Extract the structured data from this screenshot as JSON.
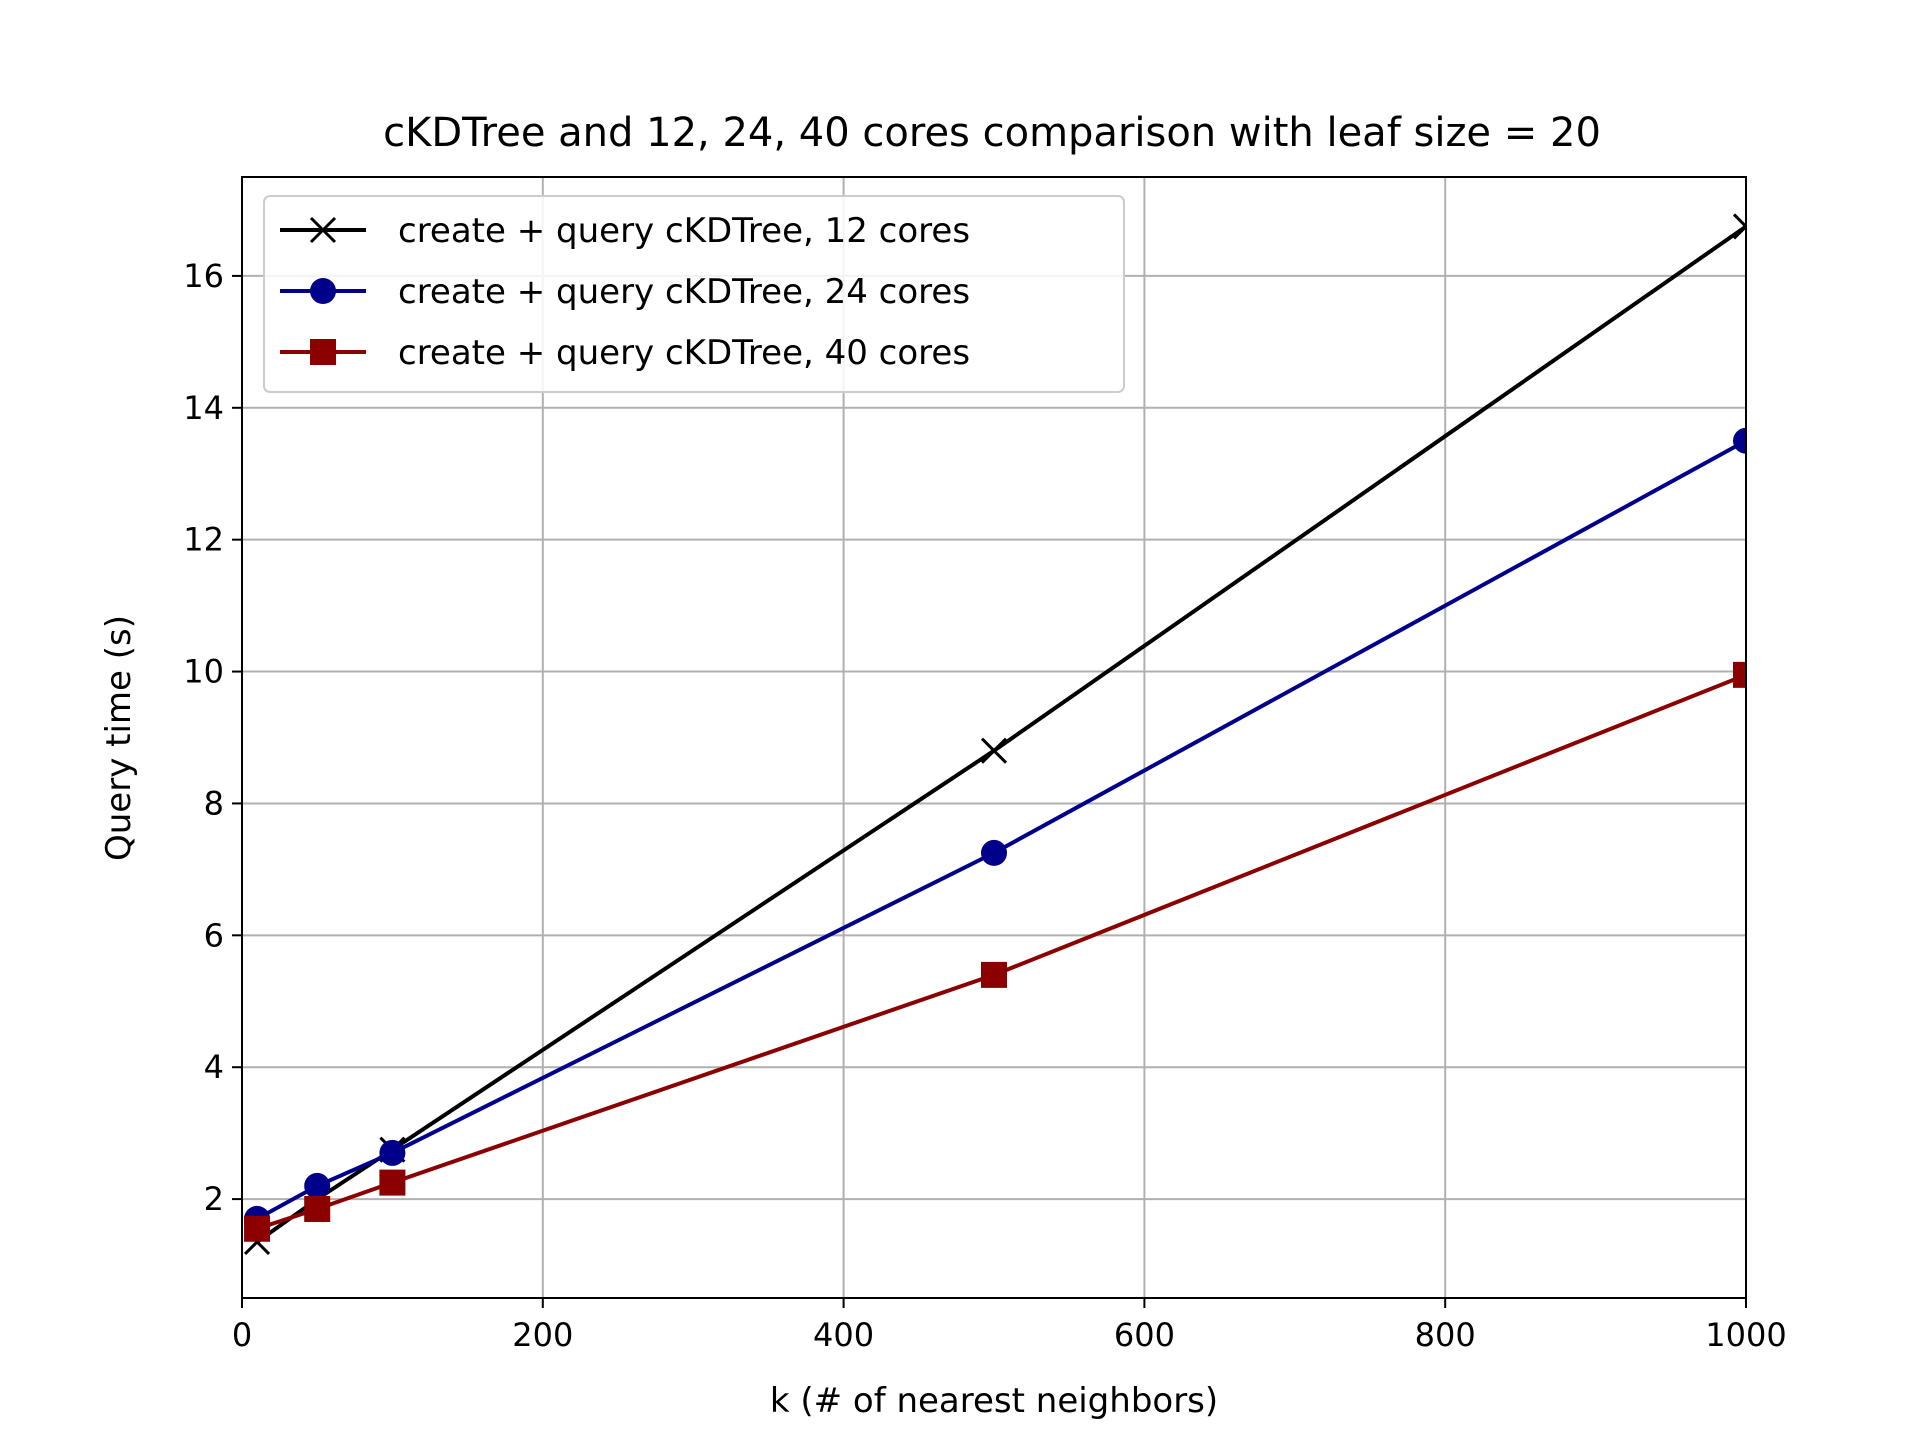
{
  "chart_data": {
    "type": "line",
    "title": "cKDTree and 12, 24, 40 cores comparison with leaf size = 20",
    "xlabel": "k (# of nearest neighbors)",
    "ylabel": "Query time (s)",
    "xlim": [
      0,
      1000
    ],
    "ylim": [
      0.5,
      17.5
    ],
    "xticks": [
      0,
      200,
      400,
      600,
      800,
      1000
    ],
    "yticks": [
      2,
      4,
      6,
      8,
      10,
      12,
      14,
      16
    ],
    "grid": true,
    "legend_position": "top-left",
    "series": [
      {
        "name": "create + query cKDTree, 12 cores",
        "color": "#000000",
        "marker": "x",
        "x": [
          10,
          50,
          100,
          500,
          1000
        ],
        "y": [
          1.35,
          2.0,
          2.75,
          8.8,
          16.75
        ]
      },
      {
        "name": "create + query cKDTree, 24 cores",
        "color": "#00008b",
        "marker": "circle",
        "x": [
          10,
          50,
          100,
          500,
          1000
        ],
        "y": [
          1.7,
          2.2,
          2.7,
          7.25,
          13.5
        ]
      },
      {
        "name": "create + query cKDTree, 40 cores",
        "color": "#8b0000",
        "marker": "square",
        "x": [
          10,
          50,
          100,
          500,
          1000
        ],
        "y": [
          1.55,
          1.85,
          2.25,
          5.4,
          9.95
        ]
      }
    ]
  }
}
